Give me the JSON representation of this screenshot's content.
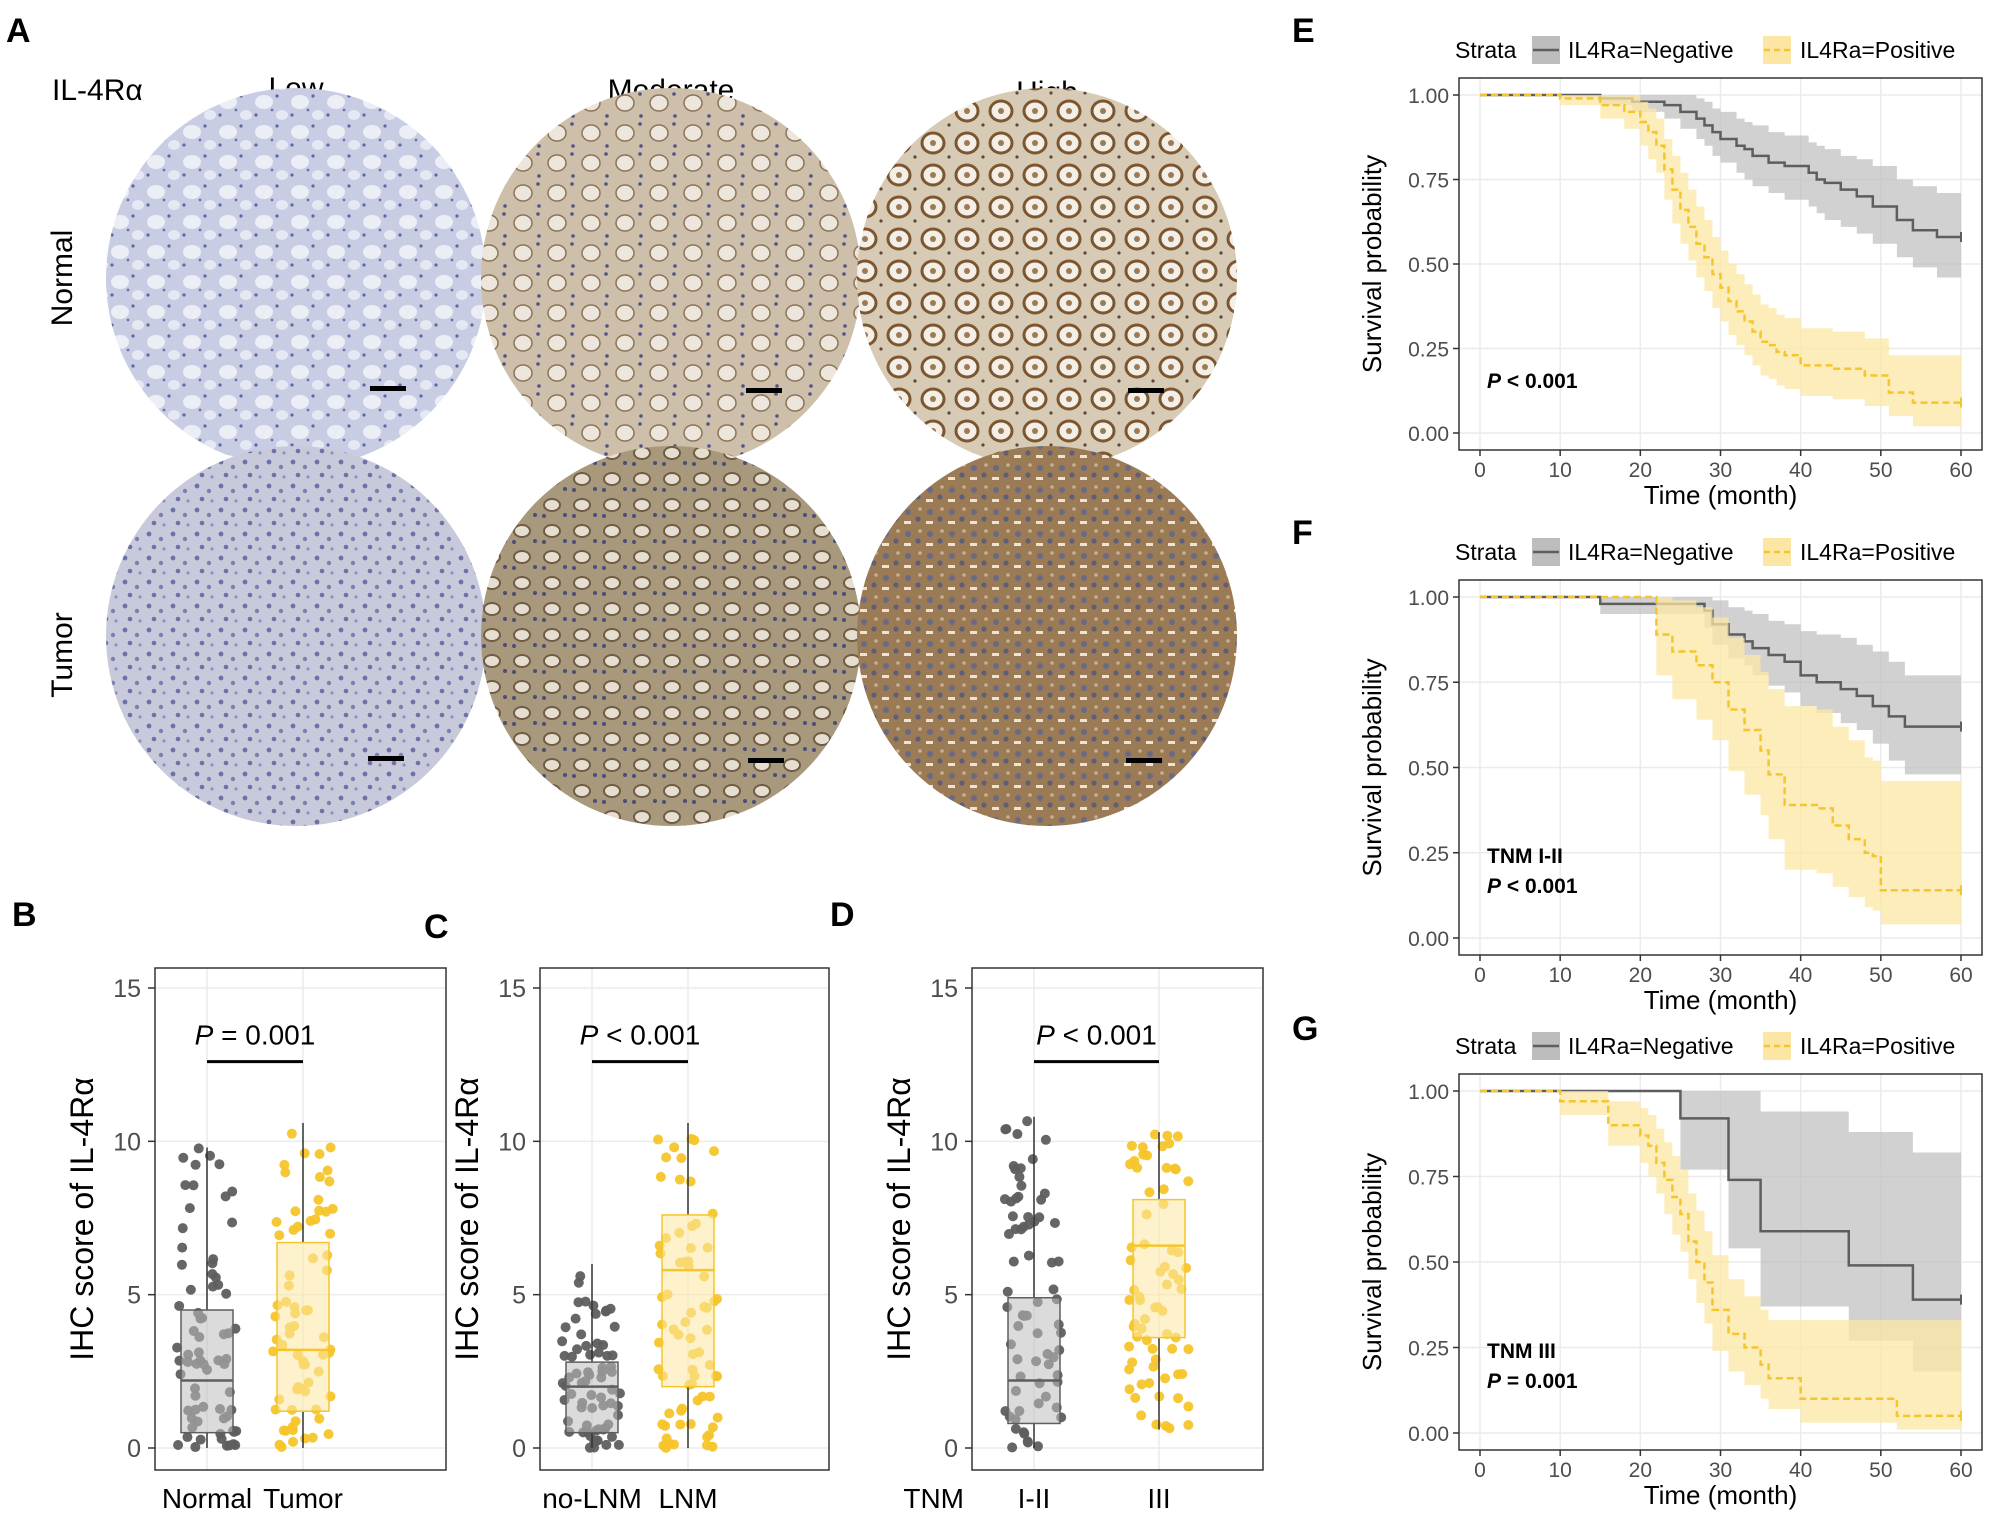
{
  "panel_a": {
    "letter": "A",
    "marker": "IL-4Rα",
    "columns": [
      "Low",
      "Moderate",
      "High"
    ],
    "rows": [
      "Normal",
      "Tumor"
    ],
    "colors": {
      "low_normal": "#c7cbe2",
      "low_tumor": "#c5c6d8",
      "moderate_normal": "#cdbfa9",
      "moderate_tumor": "#a6977c",
      "high_normal": "#b79e78",
      "high_tumor": "#8e6f4b"
    }
  },
  "colors": {
    "negative": "#5e5e5e",
    "positive": "#f5c52b",
    "negative_fill": "#bdbdbd",
    "positive_fill": "#fbe7a3",
    "grid": "#ebebeb"
  },
  "chart_data": [
    {
      "id": "B",
      "type": "box",
      "letter": "B",
      "ylabel": "IHC score of IL-4Rα",
      "ylim": [
        0,
        15
      ],
      "yticks": [
        0,
        5,
        10,
        15
      ],
      "groups": [
        {
          "name": "Normal",
          "color": "negative",
          "q1": 0.5,
          "median": 2.2,
          "q3": 4.5,
          "min": 0,
          "max": 9.8
        },
        {
          "name": "Tumor",
          "color": "positive",
          "q1": 1.2,
          "median": 3.2,
          "q3": 6.7,
          "min": 0,
          "max": 10.6
        }
      ],
      "pvalue": {
        "p": "P",
        "rest": " = 0.001"
      },
      "xprefix": ""
    },
    {
      "id": "C",
      "type": "box",
      "letter": "C",
      "ylabel": "IHC score of IL-4Rα",
      "ylim": [
        0,
        15
      ],
      "yticks": [
        0,
        5,
        10,
        15
      ],
      "groups": [
        {
          "name": "no-LNM",
          "color": "negative",
          "q1": 0.5,
          "median": 2.0,
          "q3": 2.8,
          "min": 0,
          "max": 6.0
        },
        {
          "name": "LNM",
          "color": "positive",
          "q1": 2.0,
          "median": 5.8,
          "q3": 7.6,
          "min": 0,
          "max": 10.6
        }
      ],
      "pvalue": {
        "p": "P",
        "rest": " < 0.001"
      },
      "xprefix": ""
    },
    {
      "id": "D",
      "type": "box",
      "letter": "D",
      "ylabel": "IHC score of IL-4Rα",
      "ylim": [
        0,
        15
      ],
      "yticks": [
        0,
        5,
        10,
        15
      ],
      "groups": [
        {
          "name": "I-II",
          "color": "negative",
          "q1": 0.8,
          "median": 2.2,
          "q3": 4.9,
          "min": 0,
          "max": 10.8
        },
        {
          "name": "III",
          "color": "positive",
          "q1": 3.6,
          "median": 6.6,
          "q3": 8.1,
          "min": 0.6,
          "max": 10.3
        }
      ],
      "pvalue": {
        "p": "P",
        "rest": " < 0.001"
      },
      "xprefix": "TNM"
    },
    {
      "id": "E",
      "type": "line",
      "letter": "E",
      "legend_title": "Strata",
      "legend_labels": [
        "IL4Ra=Negative",
        "IL4Ra=Positive"
      ],
      "xlabel": "Time (month)",
      "ylabel": "Survival probability",
      "xlim": [
        0,
        60
      ],
      "ylim": [
        0,
        1
      ],
      "xticks": [
        0,
        10,
        20,
        30,
        40,
        50,
        60
      ],
      "yticks": [
        "0.00",
        "0.25",
        "0.50",
        "0.75",
        "1.00"
      ],
      "annotation": [
        {
          "p": "P",
          "rest": " < 0.001"
        }
      ],
      "series": [
        {
          "name": "IL4Ra=Negative",
          "x": [
            0,
            15,
            19,
            23,
            25,
            27,
            28,
            29,
            30,
            32,
            33,
            34,
            36,
            38,
            41,
            42,
            43,
            45,
            47,
            49,
            52,
            54,
            57,
            60
          ],
          "y": [
            1.0,
            0.99,
            0.98,
            0.97,
            0.95,
            0.93,
            0.91,
            0.89,
            0.87,
            0.85,
            0.84,
            0.82,
            0.8,
            0.79,
            0.77,
            0.75,
            0.74,
            0.72,
            0.7,
            0.67,
            0.63,
            0.6,
            0.58,
            0.58
          ],
          "lower": [
            1.0,
            0.97,
            0.95,
            0.93,
            0.9,
            0.87,
            0.85,
            0.82,
            0.8,
            0.77,
            0.75,
            0.73,
            0.71,
            0.69,
            0.67,
            0.65,
            0.63,
            0.61,
            0.59,
            0.56,
            0.52,
            0.49,
            0.46,
            0.46
          ],
          "upper": [
            1.0,
            1.0,
            1.0,
            1.0,
            1.0,
            0.99,
            0.98,
            0.96,
            0.95,
            0.93,
            0.92,
            0.91,
            0.89,
            0.88,
            0.86,
            0.85,
            0.84,
            0.82,
            0.81,
            0.79,
            0.75,
            0.73,
            0.71,
            0.71
          ]
        },
        {
          "name": "IL4Ra=Positive",
          "x": [
            0,
            10,
            15,
            18,
            20,
            21,
            22,
            23,
            24,
            25,
            26,
            27,
            28,
            29,
            30,
            31,
            32,
            33,
            34,
            35,
            36,
            37,
            38,
            40,
            44,
            48,
            51,
            54,
            60
          ],
          "y": [
            1.0,
            0.99,
            0.97,
            0.95,
            0.92,
            0.89,
            0.85,
            0.78,
            0.72,
            0.66,
            0.61,
            0.56,
            0.52,
            0.47,
            0.43,
            0.39,
            0.36,
            0.33,
            0.3,
            0.27,
            0.26,
            0.24,
            0.23,
            0.2,
            0.19,
            0.17,
            0.12,
            0.09,
            0.09
          ],
          "lower": [
            1.0,
            0.97,
            0.93,
            0.9,
            0.85,
            0.81,
            0.77,
            0.69,
            0.62,
            0.56,
            0.51,
            0.46,
            0.42,
            0.37,
            0.33,
            0.29,
            0.26,
            0.23,
            0.2,
            0.17,
            0.16,
            0.14,
            0.13,
            0.11,
            0.1,
            0.08,
            0.05,
            0.02,
            0.02
          ],
          "upper": [
            1.0,
            1.0,
            1.0,
            1.0,
            0.98,
            0.96,
            0.93,
            0.87,
            0.82,
            0.77,
            0.72,
            0.67,
            0.63,
            0.58,
            0.54,
            0.5,
            0.47,
            0.44,
            0.41,
            0.38,
            0.37,
            0.35,
            0.34,
            0.31,
            0.3,
            0.28,
            0.23,
            0.23,
            0.23
          ]
        }
      ]
    },
    {
      "id": "F",
      "type": "line",
      "letter": "F",
      "legend_title": "Strata",
      "legend_labels": [
        "IL4Ra=Negative",
        "IL4Ra=Positive"
      ],
      "xlabel": "Time (month)",
      "ylabel": "Survival probability",
      "xlim": [
        0,
        60
      ],
      "ylim": [
        0,
        1
      ],
      "xticks": [
        0,
        10,
        20,
        30,
        40,
        50,
        60
      ],
      "yticks": [
        "0.00",
        "0.25",
        "0.50",
        "0.75",
        "1.00"
      ],
      "annotation": [
        {
          "p": "",
          "rest": "TNM I-II"
        },
        {
          "p": "P",
          "rest": " < 0.001"
        }
      ],
      "series": [
        {
          "name": "IL4Ra=Negative",
          "x": [
            0,
            15,
            28,
            29,
            31,
            33,
            34,
            36,
            38,
            40,
            42,
            45,
            47,
            49,
            51,
            53,
            60
          ],
          "y": [
            1.0,
            0.98,
            0.96,
            0.92,
            0.89,
            0.87,
            0.85,
            0.83,
            0.81,
            0.77,
            0.75,
            0.73,
            0.71,
            0.68,
            0.65,
            0.62,
            0.62
          ],
          "lower": [
            1.0,
            0.95,
            0.91,
            0.86,
            0.82,
            0.8,
            0.77,
            0.74,
            0.72,
            0.68,
            0.66,
            0.63,
            0.61,
            0.57,
            0.52,
            0.48,
            0.48
          ],
          "upper": [
            1.0,
            1.0,
            1.0,
            0.99,
            0.97,
            0.96,
            0.95,
            0.93,
            0.92,
            0.9,
            0.89,
            0.88,
            0.86,
            0.84,
            0.81,
            0.77,
            0.77
          ]
        },
        {
          "name": "IL4Ra=Positive",
          "x": [
            0,
            22,
            24,
            27,
            29,
            31,
            33,
            35,
            36,
            38,
            42,
            44,
            46,
            48,
            49,
            50,
            60
          ],
          "y": [
            1.0,
            0.89,
            0.84,
            0.8,
            0.75,
            0.67,
            0.61,
            0.55,
            0.48,
            0.39,
            0.38,
            0.33,
            0.29,
            0.25,
            0.24,
            0.14,
            0.14
          ],
          "lower": [
            1.0,
            0.77,
            0.7,
            0.64,
            0.58,
            0.49,
            0.42,
            0.36,
            0.29,
            0.2,
            0.19,
            0.15,
            0.12,
            0.09,
            0.08,
            0.04,
            0.04
          ],
          "upper": [
            1.0,
            1.0,
            0.99,
            0.97,
            0.94,
            0.88,
            0.83,
            0.78,
            0.73,
            0.68,
            0.67,
            0.62,
            0.58,
            0.53,
            0.52,
            0.46,
            0.46
          ]
        }
      ]
    },
    {
      "id": "G",
      "type": "line",
      "letter": "G",
      "legend_title": "Strata",
      "legend_labels": [
        "IL4Ra=Negative",
        "IL4Ra=Positive"
      ],
      "xlabel": "Time (month)",
      "ylabel": "Survival probability",
      "xlim": [
        0,
        60
      ],
      "ylim": [
        0,
        1
      ],
      "xticks": [
        0,
        10,
        20,
        30,
        40,
        50,
        60
      ],
      "yticks": [
        "0.00",
        "0.25",
        "0.50",
        "0.75",
        "1.00"
      ],
      "annotation": [
        {
          "p": "",
          "rest": "TNM III"
        },
        {
          "p": "P",
          "rest": " = 0.001"
        }
      ],
      "series": [
        {
          "name": "IL4Ra=Negative",
          "x": [
            0,
            25,
            31,
            35,
            46,
            54,
            60
          ],
          "y": [
            1.0,
            0.92,
            0.74,
            0.59,
            0.49,
            0.39,
            0.39
          ],
          "lower": [
            1.0,
            0.77,
            0.54,
            0.37,
            0.27,
            0.18,
            0.18
          ],
          "upper": [
            1.0,
            1.0,
            1.0,
            0.94,
            0.88,
            0.82,
            0.82
          ]
        },
        {
          "name": "IL4Ra=Positive",
          "x": [
            0,
            10,
            16,
            20,
            21,
            22,
            23,
            24,
            25,
            26,
            27,
            28,
            29,
            31,
            33,
            35,
            36,
            40,
            46,
            52,
            60
          ],
          "y": [
            1.0,
            0.97,
            0.9,
            0.87,
            0.84,
            0.79,
            0.74,
            0.69,
            0.64,
            0.56,
            0.5,
            0.44,
            0.36,
            0.29,
            0.25,
            0.2,
            0.16,
            0.1,
            0.1,
            0.05,
            0.05
          ],
          "lower": [
            1.0,
            0.93,
            0.84,
            0.79,
            0.75,
            0.7,
            0.64,
            0.58,
            0.53,
            0.45,
            0.38,
            0.32,
            0.24,
            0.18,
            0.14,
            0.1,
            0.07,
            0.03,
            0.03,
            0.01,
            0.01
          ],
          "upper": [
            1.0,
            1.0,
            0.97,
            0.95,
            0.93,
            0.89,
            0.85,
            0.81,
            0.77,
            0.7,
            0.65,
            0.59,
            0.52,
            0.45,
            0.4,
            0.36,
            0.33,
            0.33,
            0.33,
            0.33,
            0.33
          ]
        }
      ]
    }
  ]
}
